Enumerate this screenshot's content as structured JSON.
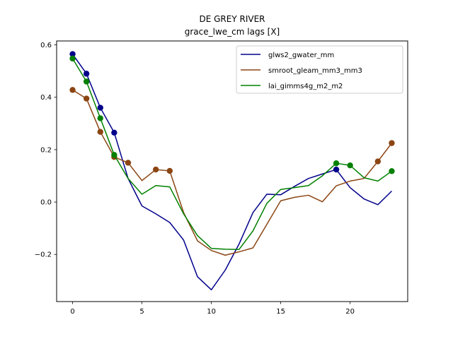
{
  "chart_data": {
    "type": "line",
    "title": "DE GREY RIVER",
    "subtitle": "grace_lwe_cm lags [X]",
    "xlabel": "",
    "ylabel": "",
    "xlim": [
      -1.15,
      24.15
    ],
    "ylim": [
      -0.38,
      0.615
    ],
    "xticks": [
      0,
      5,
      10,
      15,
      20
    ],
    "yticks": [
      -0.2,
      0.0,
      0.2,
      0.4,
      0.6
    ],
    "xtick_labels": [
      "0",
      "5",
      "10",
      "15",
      "20"
    ],
    "ytick_labels": [
      "−0.2",
      "0.0",
      "0.2",
      "0.4",
      "0.6"
    ],
    "grid": false,
    "legend_position": "top-right",
    "x": [
      0,
      1,
      2,
      3,
      4,
      5,
      6,
      7,
      8,
      9,
      10,
      11,
      12,
      13,
      14,
      15,
      16,
      17,
      18,
      19,
      20,
      21,
      22,
      23
    ],
    "series": [
      {
        "name": "glws2_gwater_mm",
        "color": "#00008b",
        "values": [
          0.565,
          0.49,
          0.36,
          0.265,
          0.09,
          -0.015,
          -0.045,
          -0.078,
          -0.145,
          -0.285,
          -0.335,
          -0.26,
          -0.16,
          -0.04,
          0.03,
          0.028,
          0.06,
          0.09,
          0.107,
          0.124,
          0.055,
          0.012,
          -0.01,
          0.042
        ],
        "markers": [
          0,
          1,
          2,
          3,
          19
        ]
      },
      {
        "name": "smroot_gleam_mm3_mm3",
        "color": "#8b4513",
        "values": [
          0.428,
          0.395,
          0.268,
          0.172,
          0.15,
          0.082,
          0.124,
          0.119,
          -0.04,
          -0.148,
          -0.185,
          -0.203,
          -0.19,
          -0.175,
          -0.085,
          0.005,
          0.018,
          0.026,
          0.001,
          0.062,
          0.08,
          0.09,
          0.155,
          0.225
        ],
        "markers": [
          0,
          1,
          2,
          3,
          4,
          6,
          7,
          22,
          23
        ]
      },
      {
        "name": "lai_gimms4g_m2_m2",
        "color": "#008000",
        "values": [
          0.548,
          0.46,
          0.32,
          0.18,
          0.09,
          0.03,
          0.063,
          0.058,
          -0.045,
          -0.128,
          -0.177,
          -0.18,
          -0.181,
          -0.11,
          -0.005,
          0.048,
          0.055,
          0.063,
          0.1,
          0.148,
          0.14,
          0.093,
          0.08,
          0.118
        ],
        "markers": [
          0,
          1,
          2,
          3,
          19,
          20,
          23
        ]
      }
    ]
  }
}
